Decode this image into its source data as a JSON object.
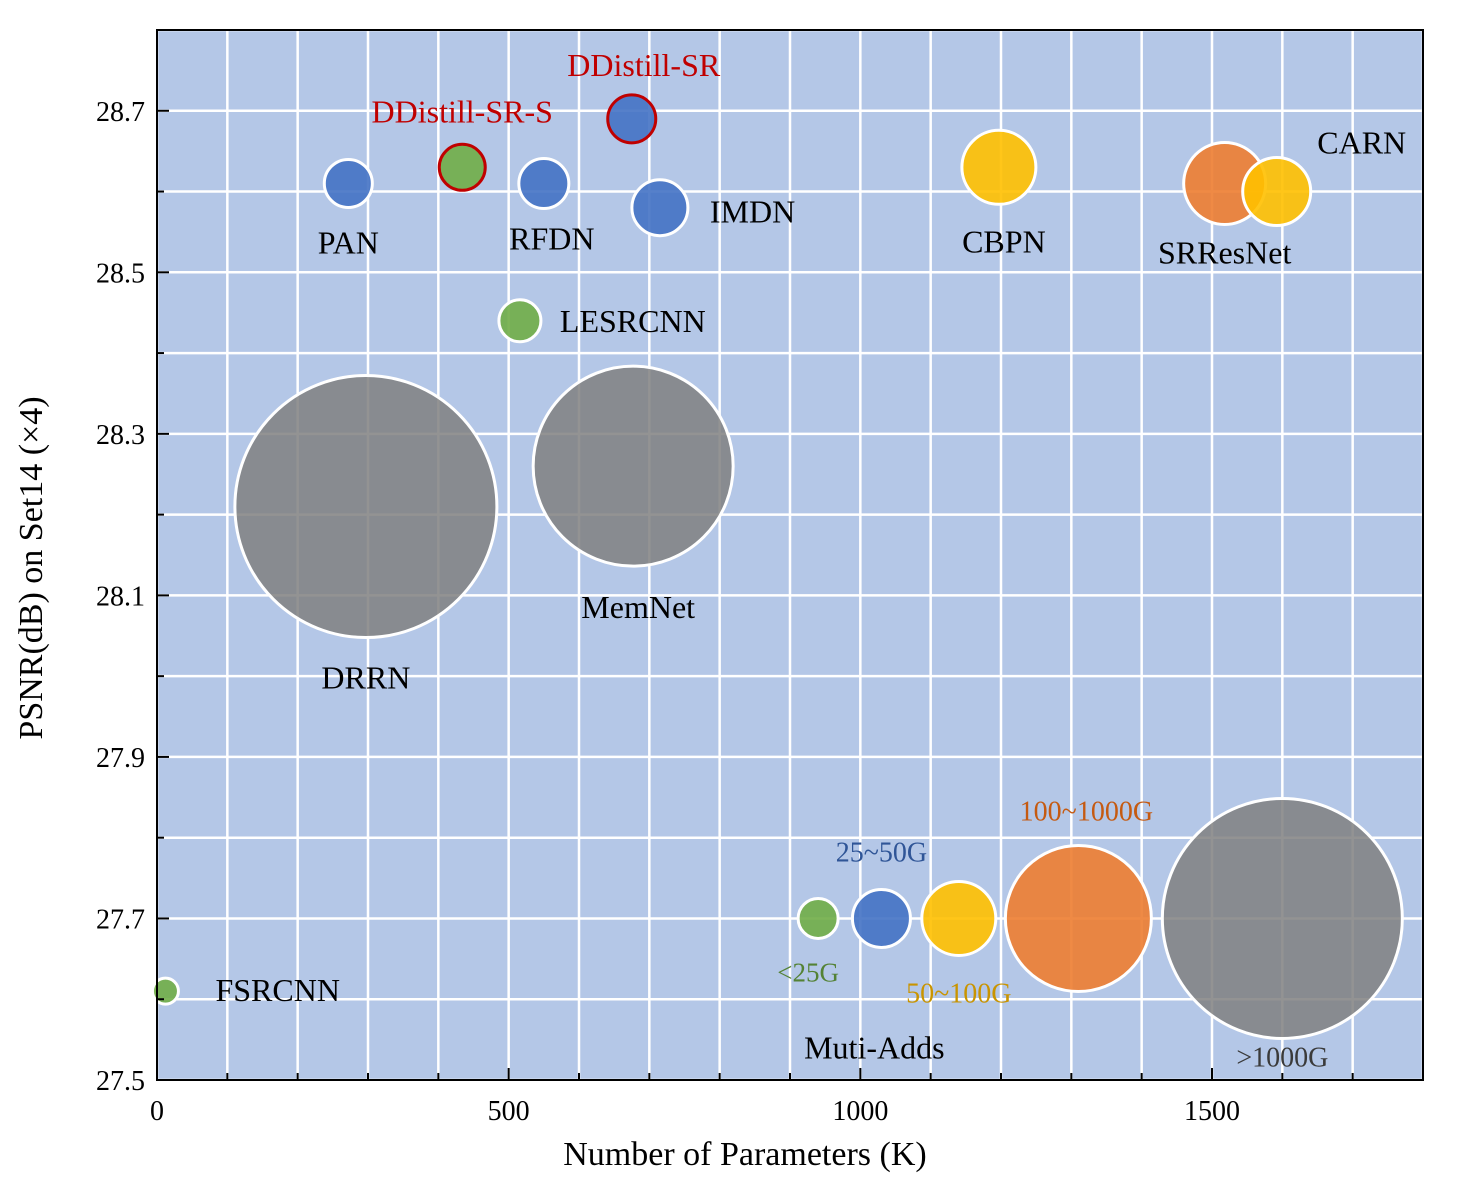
{
  "chart_data": {
    "type": "scatter",
    "subtype": "bubble",
    "title": "",
    "xlabel": "Number of Parameters (K)",
    "ylabel": "PSNR(dB)  on Set14 (×4)",
    "xlim": [
      0,
      1800
    ],
    "ylim": [
      27.5,
      28.8
    ],
    "x_ticks": [
      0,
      500,
      1000,
      1500
    ],
    "y_ticks": [
      27.5,
      27.7,
      27.9,
      28.1,
      28.3,
      28.5,
      28.7
    ],
    "grid": true,
    "colors": {
      "plot_bg": "#b4c7e7",
      "grid": "#ffffff",
      "green": "#70ad47",
      "blue": "#4472c4",
      "yellow": "#ffc000",
      "orange": "#ed7d31",
      "gray": "#808080",
      "highlight_text": "#c00000",
      "highlight_ring": "#c00000"
    },
    "points": [
      {
        "name": "FSRCNN",
        "x": 12,
        "y": 27.61,
        "category": "<25G",
        "color": "green",
        "highlight": false
      },
      {
        "name": "PAN",
        "x": 272,
        "y": 28.61,
        "category": "25~50G",
        "color": "blue",
        "highlight": false
      },
      {
        "name": "DDistill-SR-S",
        "x": 434,
        "y": 28.63,
        "category": "<25G",
        "color": "green",
        "highlight": true
      },
      {
        "name": "RFDN",
        "x": 550,
        "y": 28.61,
        "category": "25~50G",
        "color": "blue",
        "highlight": false
      },
      {
        "name": "DDistill-SR",
        "x": 675,
        "y": 28.69,
        "category": "25~50G",
        "color": "blue",
        "highlight": true
      },
      {
        "name": "IMDN",
        "x": 715,
        "y": 28.58,
        "category": "25~50G",
        "color": "blue",
        "highlight": false
      },
      {
        "name": "LESRCNN",
        "x": 516,
        "y": 28.44,
        "category": "<25G",
        "color": "green",
        "highlight": false
      },
      {
        "name": "CBPN",
        "x": 1197,
        "y": 28.63,
        "category": "50~100G",
        "color": "yellow",
        "highlight": false
      },
      {
        "name": "SRResNet",
        "x": 1518,
        "y": 28.61,
        "category": "100~1000G",
        "color": "orange",
        "highlight": false
      },
      {
        "name": "CARN",
        "x": 1592,
        "y": 28.6,
        "category": "50~100G",
        "color": "yellow",
        "highlight": false
      },
      {
        "name": "DRRN",
        "x": 297,
        "y": 28.21,
        "category": ">1000G",
        "color": "gray",
        "highlight": false
      },
      {
        "name": "MemNet",
        "x": 677,
        "y": 28.26,
        "category": ">1000G",
        "color": "gray",
        "highlight": false
      }
    ],
    "legend": {
      "title": "Muti-Adds",
      "y": 27.7,
      "items": [
        {
          "label": "<25G",
          "color": "green",
          "x": 940
        },
        {
          "label": "25~50G",
          "color": "blue",
          "x": 1030
        },
        {
          "label": "50~100G",
          "color": "yellow",
          "x": 1140
        },
        {
          "label": "100~1000G",
          "color": "orange",
          "x": 1310
        },
        {
          "label": ">1000G",
          "color": "gray",
          "x": 1600
        }
      ]
    }
  }
}
